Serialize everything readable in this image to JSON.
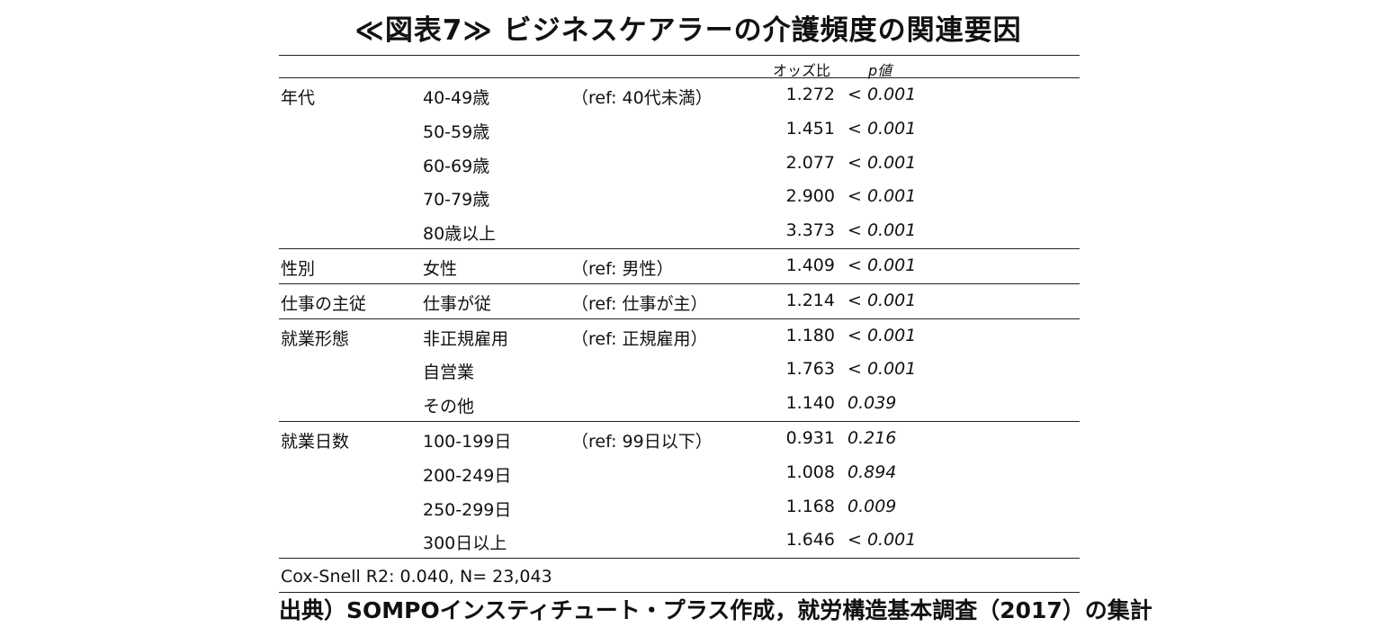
{
  "title": "≪図表7≫ ビジネスケアラーの介護頻度の関連要因",
  "header": {
    "odds_label": "オッズ比",
    "p_label": "p値"
  },
  "groups": [
    {
      "rows": [
        {
          "variable": "年代",
          "level": "40-49歳",
          "ref": "（ref: 40代未満）",
          "odds": "1.272",
          "p": "< 0.001"
        },
        {
          "variable": "",
          "level": "50-59歳",
          "ref": "",
          "odds": "1.451",
          "p": "< 0.001"
        },
        {
          "variable": "",
          "level": "60-69歳",
          "ref": "",
          "odds": "2.077",
          "p": "< 0.001"
        },
        {
          "variable": "",
          "level": "70-79歳",
          "ref": "",
          "odds": "2.900",
          "p": "< 0.001"
        },
        {
          "variable": "",
          "level": "80歳以上",
          "ref": "",
          "odds": "3.373",
          "p": "< 0.001"
        }
      ]
    },
    {
      "rows": [
        {
          "variable": "性別",
          "level": "女性",
          "ref": "（ref: 男性）",
          "odds": "1.409",
          "p": "< 0.001"
        }
      ]
    },
    {
      "rows": [
        {
          "variable": "仕事の主従",
          "level": "仕事が従",
          "ref": "（ref: 仕事が主）",
          "odds": "1.214",
          "p": "< 0.001"
        }
      ]
    },
    {
      "rows": [
        {
          "variable": "就業形態",
          "level": "非正規雇用",
          "ref": "（ref: 正規雇用）",
          "odds": "1.180",
          "p": "< 0.001"
        },
        {
          "variable": "",
          "level": "自営業",
          "ref": "",
          "odds": "1.763",
          "p": "< 0.001"
        },
        {
          "variable": "",
          "level": "その他",
          "ref": "",
          "odds": "1.140",
          "p": "0.039"
        }
      ]
    },
    {
      "rows": [
        {
          "variable": "就業日数",
          "level": "100-199日",
          "ref": "（ref: 99日以下）",
          "odds": "0.931",
          "p": "0.216"
        },
        {
          "variable": "",
          "level": "200-249日",
          "ref": "",
          "odds": "1.008",
          "p": "0.894"
        },
        {
          "variable": "",
          "level": "250-299日",
          "ref": "",
          "odds": "1.168",
          "p": "0.009"
        },
        {
          "variable": "",
          "level": "300日以上",
          "ref": "",
          "odds": "1.646",
          "p": "< 0.001"
        }
      ]
    }
  ],
  "model_note": "Cox-Snell R2: 0.040, N= 23,043",
  "source": "出典）SOMPOインスティチュート・プラス作成，就労構造基本調査（2017）の集計"
}
